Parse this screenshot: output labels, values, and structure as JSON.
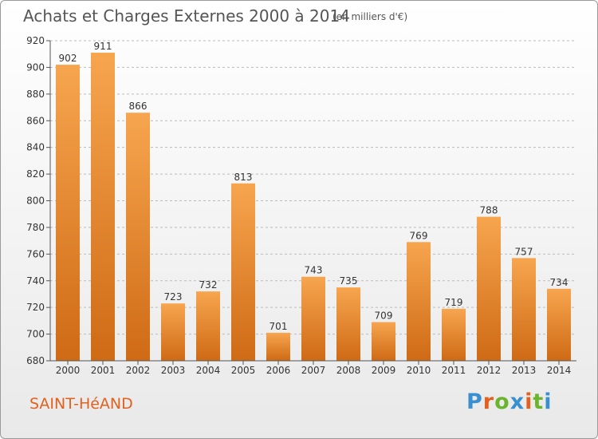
{
  "header": {
    "title": "Achats et Charges Externes 2000 à 2014",
    "subtitle": "(en milliers d'€)"
  },
  "footer": {
    "commune": "SAINT-HéAND",
    "logo_text": "Proxiti"
  },
  "colors": {
    "bar_top": "#f7a54f",
    "bar_bottom": "#cf6a15",
    "title": "#555555",
    "commune": "#e2611e",
    "logo_letters": [
      "#3a8fd1",
      "#e2611e",
      "#6bb42d",
      "#3a8fd1",
      "#e2611e",
      "#6bb42d",
      "#3a8fd1"
    ]
  },
  "chart_data": {
    "type": "bar",
    "title": "Achats et Charges Externes 2000 à 2014",
    "subtitle": "(en milliers d'€)",
    "categories": [
      "2000",
      "2001",
      "2002",
      "2003",
      "2004",
      "2005",
      "2006",
      "2007",
      "2008",
      "2009",
      "2010",
      "2011",
      "2012",
      "2013",
      "2014"
    ],
    "values": [
      902,
      911,
      866,
      723,
      732,
      813,
      701,
      743,
      735,
      709,
      769,
      719,
      788,
      757,
      734
    ],
    "ylim": [
      680,
      920
    ],
    "yticks": [
      680,
      700,
      720,
      740,
      760,
      780,
      800,
      820,
      840,
      860,
      880,
      900,
      920
    ],
    "grid": "horizontal-dashed",
    "data_labels": true
  }
}
